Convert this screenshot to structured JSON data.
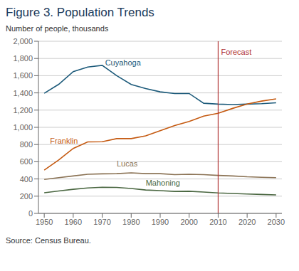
{
  "chart_data": {
    "type": "line",
    "title": "Figure 3. Population Trends",
    "ylabel": "Number of people, thousands",
    "source": "Source: Census Bureau.",
    "x": [
      1950,
      1955,
      1960,
      1965,
      1970,
      1975,
      1980,
      1985,
      1990,
      1995,
      2000,
      2005,
      2010,
      2015,
      2020,
      2025,
      2030
    ],
    "series": [
      {
        "name": "Cuyahoga",
        "color": "#1c5a7a",
        "values": [
          1396,
          1500,
          1647,
          1700,
          1720,
          1600,
          1498,
          1450,
          1412,
          1393,
          1393,
          1280,
          1270,
          1265,
          1270,
          1275,
          1285
        ]
      },
      {
        "name": "Franklin",
        "color": "#c55a11",
        "values": [
          503,
          620,
          755,
          830,
          833,
          869,
          869,
          900,
          961,
          1020,
          1068,
          1130,
          1163,
          1220,
          1270,
          1305,
          1330
        ]
      },
      {
        "name": "Lucas",
        "color": "#8b7355",
        "values": [
          395,
          415,
          435,
          455,
          460,
          462,
          471,
          462,
          462,
          450,
          455,
          450,
          441,
          435,
          425,
          420,
          415
        ]
      },
      {
        "name": "Mahoning",
        "color": "#4a6741",
        "values": [
          240,
          260,
          280,
          295,
          304,
          302,
          289,
          272,
          264,
          255,
          257,
          248,
          238,
          232,
          225,
          220,
          215
        ]
      }
    ],
    "xlim": [
      1948,
      2032
    ],
    "xticks": [
      1950,
      1960,
      1970,
      1980,
      1990,
      2000,
      2010,
      2020,
      2030
    ],
    "ylim": [
      0,
      2000
    ],
    "yticks": [
      0,
      200,
      400,
      600,
      800,
      {
        "value": 1000,
        "label": "1,000"
      },
      {
        "value": 1200,
        "label": "1,200"
      },
      {
        "value": 1400,
        "label": "1,400"
      },
      {
        "value": 1600,
        "label": "1,600"
      },
      {
        "value": 1800,
        "label": "1,800"
      },
      {
        "value": 2000,
        "label": "2,000"
      }
    ],
    "grid": true,
    "reference_lines": [
      {
        "x": 2010,
        "color": "#b03030"
      }
    ],
    "annotations": [
      {
        "text": "Cuyahoga",
        "x": 1971,
        "y": 1740,
        "color": "#1c5a7a"
      },
      {
        "text": "Franklin",
        "x": 1952,
        "y": 830,
        "color": "#c55a11"
      },
      {
        "text": "Lucas",
        "x": 1975,
        "y": 570,
        "color": "#8b7355"
      },
      {
        "text": "Mahoning",
        "x": 1985,
        "y": 345,
        "color": "#4a6741"
      },
      {
        "text": "Forecast",
        "x": 2011,
        "y": 1870,
        "color": "#b03030"
      }
    ]
  }
}
